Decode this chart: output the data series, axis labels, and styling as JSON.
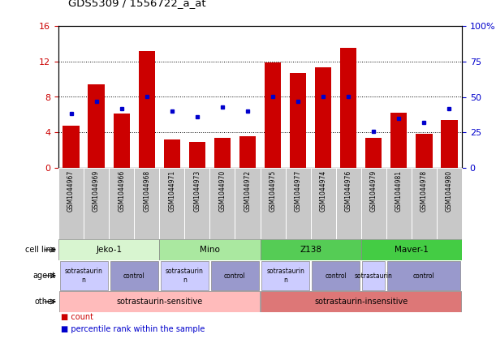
{
  "title": "GDS5309 / 1556722_a_at",
  "samples": [
    "GSM1044967",
    "GSM1044969",
    "GSM1044966",
    "GSM1044968",
    "GSM1044971",
    "GSM1044973",
    "GSM1044970",
    "GSM1044972",
    "GSM1044975",
    "GSM1044977",
    "GSM1044974",
    "GSM1044976",
    "GSM1044979",
    "GSM1044981",
    "GSM1044978",
    "GSM1044980"
  ],
  "counts": [
    4.8,
    9.4,
    6.1,
    13.2,
    3.2,
    2.9,
    3.4,
    3.6,
    11.9,
    10.7,
    11.3,
    13.5,
    3.4,
    6.2,
    3.8,
    5.4
  ],
  "percentiles": [
    38,
    47,
    42,
    50,
    40,
    36,
    43,
    40,
    50,
    47,
    50,
    50,
    26,
    35,
    32,
    42
  ],
  "ylim_left": [
    0,
    16
  ],
  "ylim_right": [
    0,
    100
  ],
  "yticks_left": [
    0,
    4,
    8,
    12,
    16
  ],
  "yticks_right": [
    0,
    25,
    50,
    75,
    100
  ],
  "bar_color": "#cc0000",
  "dot_color": "#0000cc",
  "cell_lines": [
    {
      "label": "Jeko-1",
      "start": 0,
      "end": 4,
      "color": "#d8f5d0"
    },
    {
      "label": "Mino",
      "start": 4,
      "end": 8,
      "color": "#aae8a0"
    },
    {
      "label": "Z138",
      "start": 8,
      "end": 12,
      "color": "#55cc55"
    },
    {
      "label": "Maver-1",
      "start": 12,
      "end": 16,
      "color": "#44cc44"
    }
  ],
  "agents": [
    {
      "label": "sotrastaurin\nn",
      "start": 0,
      "end": 2,
      "color": "#ccccff"
    },
    {
      "label": "control",
      "start": 2,
      "end": 4,
      "color": "#9999cc"
    },
    {
      "label": "sotrastaurin\nn",
      "start": 4,
      "end": 6,
      "color": "#ccccff"
    },
    {
      "label": "control",
      "start": 6,
      "end": 8,
      "color": "#9999cc"
    },
    {
      "label": "sotrastaurin\nn",
      "start": 8,
      "end": 10,
      "color": "#ccccff"
    },
    {
      "label": "control",
      "start": 10,
      "end": 12,
      "color": "#9999cc"
    },
    {
      "label": "sotrastaurin",
      "start": 12,
      "end": 13,
      "color": "#ccccff"
    },
    {
      "label": "control",
      "start": 13,
      "end": 16,
      "color": "#9999cc"
    }
  ],
  "others": [
    {
      "label": "sotrastaurin-sensitive",
      "start": 0,
      "end": 8,
      "color": "#ffbbbb"
    },
    {
      "label": "sotrastaurin-insensitive",
      "start": 8,
      "end": 16,
      "color": "#dd7777"
    }
  ],
  "row_labels": [
    "cell line",
    "agent",
    "other"
  ],
  "legend": [
    {
      "color": "#cc0000",
      "label": "count"
    },
    {
      "color": "#0000cc",
      "label": "percentile rank within the sample"
    }
  ],
  "fig_w": 6.11,
  "fig_h": 4.23,
  "dpi": 100
}
